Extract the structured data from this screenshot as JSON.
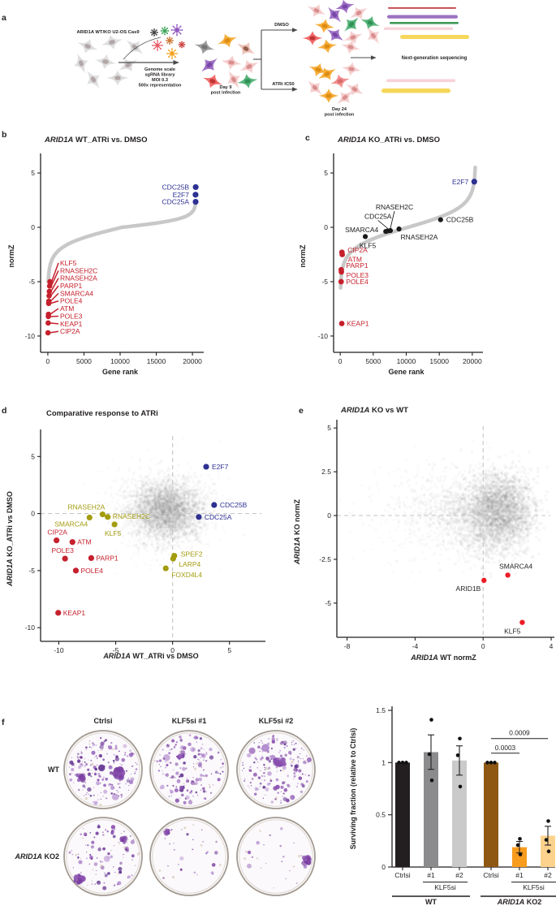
{
  "panel_letters": {
    "a": "a",
    "b": "b",
    "c": "c",
    "d": "d",
    "e": "e",
    "f": "f"
  },
  "panel_a": {
    "cell_line_label": "ARID1A WT/KO U2-OS Cas9",
    "library_lines": [
      "Genome scale",
      "sgRNA library",
      "MOI 0.3",
      "500x representation"
    ],
    "day9_lines": [
      "Day 9",
      "post infection"
    ],
    "dmso_label": "DMSO",
    "atri_label": "ATRi IC50",
    "day24_lines": [
      "Day 24",
      "post infection"
    ],
    "ngs_label": "Next-generation sequencing"
  },
  "chart_data": [
    {
      "id": "b",
      "type": "rank-line",
      "title_parts": [
        {
          "t": "ARID1A",
          "i": true
        },
        {
          "t": " WT_ATRi vs. DMSO"
        }
      ],
      "xlabel_parts": [
        {
          "t": "Gene rank"
        }
      ],
      "ylabel_parts": [
        {
          "t": "normZ"
        }
      ],
      "xlim": [
        -1000,
        21000
      ],
      "ylim": [
        -11.5,
        6.2
      ],
      "xticks": [
        0,
        5000,
        10000,
        15000,
        20000
      ],
      "yticks": [
        5,
        0,
        -5,
        -10
      ],
      "curve": {
        "n": 20500,
        "neg": 0.84,
        "pos": 0.39
      },
      "series": [
        {
          "name": "enriched",
          "color": "#2e3192",
          "r": 3.6,
          "points": [
            {
              "gene": "CDC25B",
              "x": 20450,
              "y": 3.7
            },
            {
              "gene": "E2F7",
              "x": 20430,
              "y": 3.0
            },
            {
              "gene": "CDC25A",
              "x": 20440,
              "y": 2.35
            }
          ]
        },
        {
          "name": "depleted",
          "color": "#c5202c",
          "r": 3.3,
          "points": [
            {
              "gene": "KLF5",
              "x": 300,
              "y": -5.0
            },
            {
              "gene": "RNASEH2C",
              "x": 250,
              "y": -5.4
            },
            {
              "gene": "RNASEH2A",
              "x": 210,
              "y": -5.9
            },
            {
              "gene": "PARP1",
              "x": 175,
              "y": -6.3
            },
            {
              "gene": "SMARCA4",
              "x": 145,
              "y": -6.8
            },
            {
              "gene": "POLE4",
              "x": 120,
              "y": -7.0
            },
            {
              "gene": "ATM",
              "x": 95,
              "y": -8.0
            },
            {
              "gene": "POLE3",
              "x": 75,
              "y": -8.2
            },
            {
              "gene": "KEAP1",
              "x": 50,
              "y": -8.8
            },
            {
              "gene": "CIP2A",
              "x": 25,
              "y": -9.7
            }
          ]
        }
      ]
    },
    {
      "id": "c",
      "type": "rank-line",
      "title_parts": [
        {
          "t": "ARID1A",
          "i": true
        },
        {
          "t": " KO_ATRi vs. DMSO"
        }
      ],
      "xlabel_parts": [
        {
          "t": "Gene rank"
        }
      ],
      "ylabel_parts": [
        {
          "t": "normZ"
        }
      ],
      "xlim": [
        -1000,
        21000
      ],
      "ylim": [
        -11.5,
        6.2
      ],
      "xticks": [
        0,
        5000,
        10000,
        15000,
        20000
      ],
      "yticks": [
        5,
        0,
        -5,
        -10
      ],
      "curve": {
        "n": 20500,
        "neg": 0.93,
        "pos": 0.92
      },
      "series": [
        {
          "name": "enriched",
          "color": "#2e3192",
          "r": 3.6,
          "points": [
            {
              "gene": "E2F7",
              "x": 20300,
              "y": 4.2
            }
          ]
        },
        {
          "name": "neutral",
          "color": "#1a1a1a",
          "r": 3.1,
          "points": [
            {
              "gene": "KLF5",
              "x": 3800,
              "y": -0.85
            },
            {
              "gene": "SMARCA4",
              "x": 6900,
              "y": -0.38
            },
            {
              "gene": "CDC25A",
              "x": 7200,
              "y": -0.33
            },
            {
              "gene": "RNASEH2C",
              "x": 7600,
              "y": -0.3
            },
            {
              "gene": "RNASEH2A",
              "x": 8900,
              "y": -0.15
            },
            {
              "gene": "CDC25B",
              "x": 15200,
              "y": 0.7
            }
          ]
        },
        {
          "name": "depleted",
          "color": "#c5202c",
          "r": 3.4,
          "points": [
            {
              "gene": "CIP2A",
              "x": 260,
              "y": -2.3
            },
            {
              "gene": "ATM",
              "x": 310,
              "y": -2.5
            },
            {
              "gene": "PARP1",
              "x": 150,
              "y": -3.9
            },
            {
              "gene": "POLE3",
              "x": 180,
              "y": -4.1
            },
            {
              "gene": "POLE4",
              "x": 140,
              "y": -5.0
            },
            {
              "gene": "KEAP1",
              "x": 240,
              "y": -8.85
            }
          ]
        }
      ]
    },
    {
      "id": "d",
      "type": "scatter",
      "title_parts": [
        {
          "t": "Comparative response to ATRi"
        }
      ],
      "xlabel_parts": [
        {
          "t": "ARID1A",
          "i": true
        },
        {
          "t": " WT_ATRi vs DMSO"
        }
      ],
      "ylabel_parts": [
        {
          "t": "ARID1A",
          "i": true
        },
        {
          "t": " KO_ATRi vs DMSO"
        }
      ],
      "xlim": [
        -11.6,
        7.8
      ],
      "ylim": [
        -11.2,
        6.8
      ],
      "xticks": [
        -10,
        -5,
        0,
        5
      ],
      "yticks": [
        5,
        0,
        -5,
        -10
      ],
      "zero_lines": true,
      "series": [
        {
          "name": "enriched-both",
          "color": "#2e3192",
          "r": 3.6,
          "points": [
            {
              "gene": "E2F7",
              "x": 2.95,
              "y": 4.1
            },
            {
              "gene": "CDC25B",
              "x": 3.65,
              "y": 0.75
            },
            {
              "gene": "CDC25A",
              "x": 2.3,
              "y": -0.3
            }
          ]
        },
        {
          "name": "wt-selective",
          "color": "#a39c0e",
          "r": 3.6,
          "points": [
            {
              "gene": "SMARCA4",
              "x": -7.3,
              "y": -0.35
            },
            {
              "gene": "RNASEH2A",
              "x": -6.15,
              "y": -0.07
            },
            {
              "gene": "RNASEH2C",
              "x": -5.7,
              "y": -0.3
            },
            {
              "gene": "KLF5",
              "x": -5.1,
              "y": -0.95
            },
            {
              "gene": "SPEF2",
              "x": 0.15,
              "y": -3.7
            },
            {
              "gene": "LARP4",
              "x": 0.05,
              "y": -3.95
            },
            {
              "gene": "FOXD4L4",
              "x": -0.6,
              "y": -4.8
            }
          ]
        },
        {
          "name": "depleted-both",
          "color": "#c5202c",
          "r": 3.6,
          "points": [
            {
              "gene": "CIP2A",
              "x": -10.2,
              "y": -2.35
            },
            {
              "gene": "ATM",
              "x": -8.8,
              "y": -2.5
            },
            {
              "gene": "POLE3",
              "x": -9.45,
              "y": -3.95
            },
            {
              "gene": "PARP1",
              "x": -7.15,
              "y": -3.9
            },
            {
              "gene": "POLE4",
              "x": -8.5,
              "y": -5.0
            },
            {
              "gene": "KEAP1",
              "x": -10.05,
              "y": -8.7
            }
          ]
        }
      ]
    },
    {
      "id": "e",
      "type": "scatter",
      "title_parts": [
        {
          "t": "ARID1A",
          "i": true
        },
        {
          "t": " KO vs WT"
        }
      ],
      "xlabel_parts": [
        {
          "t": "ARID1A",
          "i": true
        },
        {
          "t": " WT normZ"
        }
      ],
      "ylabel_parts": [
        {
          "t": "ARID1A",
          "i": true
        },
        {
          "t": " KO normZ"
        }
      ],
      "xlim": [
        -8.6,
        3.95
      ],
      "ylim": [
        -6.95,
        5.1
      ],
      "xticks": [
        -8,
        -4,
        0,
        4
      ],
      "yticks": [
        5,
        2.5,
        0,
        -2.5,
        -5
      ],
      "zero_lines": true,
      "series": [
        {
          "name": "hits",
          "color": "#ed1c24",
          "r": 3.2,
          "label_color": "#231f20",
          "points": [
            {
              "gene": "ARID1B",
              "x": 0.05,
              "y": -3.7
            },
            {
              "gene": "SMARCA4",
              "x": 1.45,
              "y": -3.4
            },
            {
              "gene": "KLF5",
              "x": 2.3,
              "y": -6.1
            }
          ]
        }
      ]
    },
    {
      "id": "f",
      "type": "bar",
      "ylabel": "Surviving fraction (relative to Ctrlsi)",
      "ylim": [
        0,
        1.5
      ],
      "yticks": [
        0,
        0.5,
        1,
        1.5
      ],
      "categories": [
        "Ctrlsi",
        "#1",
        "#2",
        "Ctrlsi",
        "#1",
        "#2"
      ],
      "values": [
        1.0,
        1.1,
        1.02,
        1.0,
        0.19,
        0.3
      ],
      "errors": [
        0,
        0.165,
        0.14,
        0,
        0.055,
        0.09
      ],
      "bar_colors": [
        "#231f20",
        "#8b8b8e",
        "#cbcacb",
        "#8e5712",
        "#f89c1e",
        "#fdd28c"
      ],
      "dot_values": [
        [
          1,
          1,
          1
        ],
        [
          0.83,
          1.08,
          1.41
        ],
        [
          0.77,
          1.07,
          1.23
        ],
        [
          1,
          1,
          1
        ],
        [
          0.12,
          0.21,
          0.27
        ],
        [
          0.15,
          0.26,
          0.44
        ]
      ],
      "subgroup_labels": [
        {
          "label": "KLF5si",
          "bars": [
            1,
            2
          ]
        },
        {
          "label": "KLF5si",
          "bars": [
            4,
            5
          ]
        }
      ],
      "group_labels": [
        {
          "parts": [
            {
              "t": "WT"
            }
          ],
          "bars": [
            0,
            2
          ]
        },
        {
          "parts": [
            {
              "t": "ARID1A",
              "i": true
            },
            {
              "t": " KO2"
            }
          ],
          "bars": [
            3,
            5
          ]
        }
      ],
      "significance": [
        {
          "label": "0.0003",
          "from": 3,
          "to": 4,
          "y": 1.09
        },
        {
          "label": "0.0009",
          "from": 3,
          "to": 5,
          "y": 1.23
        }
      ]
    }
  ],
  "colony_assay": {
    "col_headers": [
      "Ctrlsi",
      "KLF5si #1",
      "KLF5si #2"
    ],
    "row_headers": [
      [
        {
          "t": "WT"
        }
      ],
      [
        {
          "t": "ARID1A",
          "i": true
        },
        {
          "t": " KO2"
        }
      ]
    ],
    "colony_density": [
      [
        185,
        155,
        175
      ],
      [
        105,
        26,
        20
      ]
    ]
  }
}
